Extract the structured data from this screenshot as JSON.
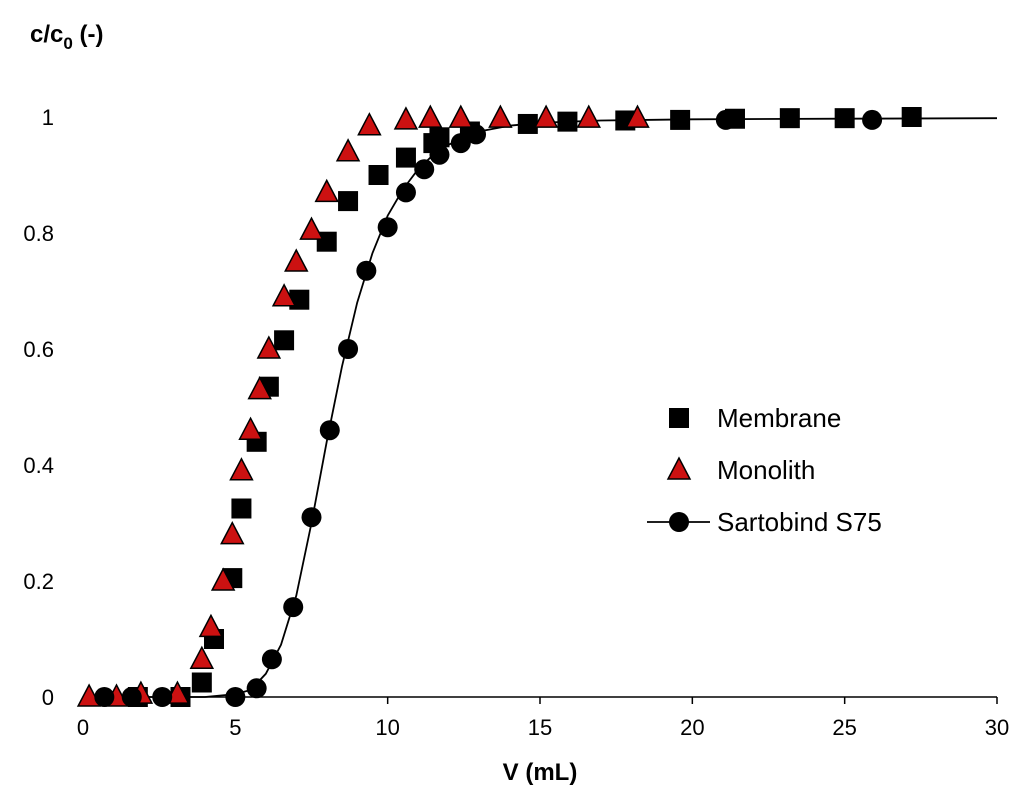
{
  "chart_data": {
    "type": "scatter",
    "title": "",
    "xlabel": "V (mL)",
    "ylabel": "c/c0 (-)",
    "ylabel_main": "c/c",
    "ylabel_sub": "0",
    "ylabel_tail": " (-)",
    "xlim": [
      0,
      30
    ],
    "ylim": [
      0,
      1
    ],
    "xticks": [
      0,
      5,
      10,
      15,
      20,
      25,
      30
    ],
    "yticks": [
      0,
      0.2,
      0.4,
      0.6,
      0.8,
      1
    ],
    "xtick_labels": [
      "0",
      "5",
      "10",
      "15",
      "20",
      "25",
      "30"
    ],
    "ytick_labels": [
      "0",
      "0.2",
      "0.4",
      "0.6",
      "0.8",
      "1"
    ],
    "grid": false,
    "legend_position": "right-center",
    "series": [
      {
        "name": "Membrane",
        "marker": "square",
        "color": "#000000",
        "line": false,
        "x": [
          1.8,
          3.2,
          3.9,
          4.3,
          4.9,
          5.2,
          5.7,
          6.1,
          6.6,
          7.1,
          8.0,
          8.7,
          9.7,
          10.6,
          11.5,
          11.7,
          12.7,
          14.6,
          15.9,
          17.8,
          19.6,
          21.4,
          23.2,
          25.0,
          27.2
        ],
        "y": [
          0.0,
          0.0,
          0.025,
          0.1,
          0.205,
          0.325,
          0.44,
          0.535,
          0.615,
          0.685,
          0.785,
          0.855,
          0.9,
          0.93,
          0.955,
          0.965,
          0.975,
          0.988,
          0.992,
          0.994,
          0.995,
          0.997,
          0.998,
          0.998,
          1.0
        ]
      },
      {
        "name": "Monolith",
        "marker": "triangle",
        "color": "#cc1111",
        "line": false,
        "x": [
          0.2,
          1.1,
          1.9,
          3.1,
          3.9,
          4.2,
          4.6,
          4.9,
          5.2,
          5.5,
          5.8,
          6.1,
          6.6,
          7.0,
          7.5,
          8.0,
          8.7,
          9.4,
          10.6,
          11.4,
          12.4,
          13.7,
          15.2,
          16.6,
          18.2
        ],
        "y": [
          0.0,
          0.0,
          0.005,
          0.005,
          0.065,
          0.12,
          0.2,
          0.28,
          0.39,
          0.46,
          0.53,
          0.6,
          0.69,
          0.75,
          0.805,
          0.87,
          0.94,
          0.985,
          0.995,
          0.998,
          0.998,
          0.998,
          0.998,
          0.998,
          0.998
        ]
      },
      {
        "name": "Sartobind S75",
        "marker": "circle",
        "color": "#000000",
        "line": true,
        "x": [
          0.7,
          1.6,
          2.6,
          5.0,
          5.7,
          6.2,
          6.9,
          7.5,
          8.1,
          8.7,
          9.3,
          10.0,
          10.6,
          11.2,
          11.7,
          12.4,
          12.9,
          21.1,
          25.9
        ],
        "y": [
          0.0,
          0.0,
          0.0,
          0.0,
          0.015,
          0.065,
          0.155,
          0.31,
          0.46,
          0.6,
          0.735,
          0.81,
          0.87,
          0.91,
          0.935,
          0.955,
          0.97,
          0.995,
          0.995
        ],
        "curve_x": [
          0,
          2,
          4,
          5,
          5.5,
          6,
          6.5,
          7,
          7.5,
          8,
          8.5,
          9,
          9.5,
          10,
          10.5,
          11,
          11.5,
          12,
          12.5,
          13,
          14,
          15,
          17,
          20,
          25,
          30
        ],
        "curve_y": [
          0,
          0,
          0,
          0.005,
          0.012,
          0.04,
          0.09,
          0.175,
          0.3,
          0.44,
          0.57,
          0.68,
          0.765,
          0.83,
          0.875,
          0.91,
          0.935,
          0.952,
          0.965,
          0.975,
          0.985,
          0.99,
          0.994,
          0.996,
          0.997,
          0.998
        ]
      }
    ]
  }
}
